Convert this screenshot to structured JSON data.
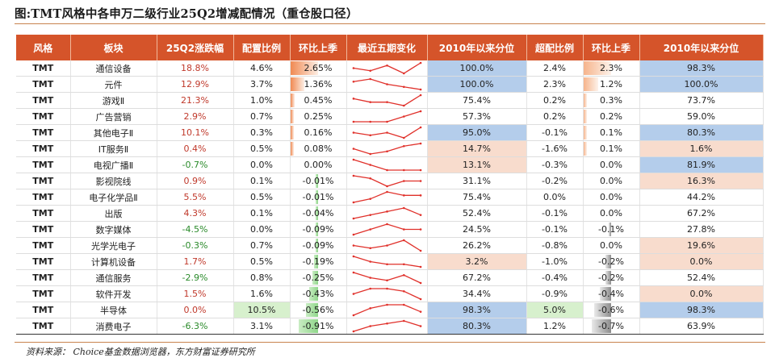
{
  "title": "图:TMT风格中各申万二级行业25Q2增减配情况（重仓股口径）",
  "source": "资料来源： Choice基金数据浏览器，东方财富证券研究所",
  "colors": {
    "header_bg": "#d5542a",
    "spark_line": "#e0302a",
    "positive_text": "#c0392b",
    "negative_text": "#2a8a2a"
  },
  "chart_data": {
    "type": "table",
    "columns": [
      "风格",
      "板块",
      "25Q2涨跌幅",
      "配置比例",
      "环比上季",
      "最近五期变化",
      "2010年以来分位",
      "超配比例",
      "环比上季",
      "2010年以来分位"
    ],
    "rows": [
      {
        "style": "TMT",
        "sector": "通信设备",
        "change": "18.8%",
        "alloc": "4.6%",
        "qoq": "2.65%",
        "spark": [
          3,
          2,
          4,
          1,
          5
        ],
        "pct": "100.0%",
        "over": "2.4%",
        "qoq2": "2.3%",
        "pct2": "98.3%"
      },
      {
        "style": "TMT",
        "sector": "元件",
        "change": "12.9%",
        "alloc": "3.7%",
        "qoq": "1.36%",
        "spark": [
          4,
          5,
          3,
          2,
          1
        ],
        "pct": "100.0%",
        "over": "2.3%",
        "qoq2": "1.2%",
        "pct2": "100.0%"
      },
      {
        "style": "TMT",
        "sector": "游戏Ⅱ",
        "change": "21.3%",
        "alloc": "1.0%",
        "qoq": "0.45%",
        "spark": [
          4,
          3,
          3,
          2,
          5
        ],
        "pct": "75.4%",
        "over": "0.2%",
        "qoq2": "0.3%",
        "pct2": "73.7%"
      },
      {
        "style": "TMT",
        "sector": "广告营销",
        "change": "2.9%",
        "alloc": "0.7%",
        "qoq": "0.25%",
        "spark": [
          3,
          3,
          3,
          4,
          5
        ],
        "pct": "57.3%",
        "over": "0.2%",
        "qoq2": "0.2%",
        "pct2": "59.0%"
      },
      {
        "style": "TMT",
        "sector": "其他电子Ⅱ",
        "change": "10.1%",
        "alloc": "0.3%",
        "qoq": "0.16%",
        "spark": [
          3,
          2,
          3,
          1,
          5
        ],
        "pct": "95.0%",
        "over": "-0.1%",
        "qoq2": "0.1%",
        "pct2": "80.3%"
      },
      {
        "style": "TMT",
        "sector": "IT服务Ⅱ",
        "change": "0.4%",
        "alloc": "0.5%",
        "qoq": "0.08%",
        "spark": [
          3,
          1,
          2,
          4,
          5
        ],
        "pct": "14.7%",
        "over": "-1.6%",
        "qoq2": "0.1%",
        "pct2": "1.6%"
      },
      {
        "style": "TMT",
        "sector": "电视广播Ⅱ",
        "change": "-0.7%",
        "alloc": "0.0%",
        "qoq": "0.00%",
        "spark": [
          5,
          3,
          1,
          1,
          1
        ],
        "pct": "13.1%",
        "over": "-0.3%",
        "qoq2": "0.0%",
        "pct2": "81.9%"
      },
      {
        "style": "TMT",
        "sector": "影视院线",
        "change": "0.9%",
        "alloc": "0.1%",
        "qoq": "-0.01%",
        "spark": [
          5,
          4,
          1,
          3,
          3
        ],
        "pct": "31.1%",
        "over": "-0.2%",
        "qoq2": "0.0%",
        "pct2": "16.3%"
      },
      {
        "style": "TMT",
        "sector": "电子化学品Ⅱ",
        "change": "5.5%",
        "alloc": "0.5%",
        "qoq": "-0.01%",
        "spark": [
          2,
          3,
          5,
          4,
          4
        ],
        "pct": "75.4%",
        "over": "0.0%",
        "qoq2": "0.0%",
        "pct2": "44.2%"
      },
      {
        "style": "TMT",
        "sector": "出版",
        "change": "4.3%",
        "alloc": "0.1%",
        "qoq": "-0.04%",
        "spark": [
          2,
          3,
          4,
          5,
          3
        ],
        "pct": "52.4%",
        "over": "-0.1%",
        "qoq2": "0.0%",
        "pct2": "67.2%"
      },
      {
        "style": "TMT",
        "sector": "数字媒体",
        "change": "-4.5%",
        "alloc": "0.0%",
        "qoq": "-0.09%",
        "spark": [
          1,
          3,
          5,
          3,
          3
        ],
        "pct": "24.5%",
        "over": "-0.1%",
        "qoq2": "-0.1%",
        "pct2": "27.8%"
      },
      {
        "style": "TMT",
        "sector": "光学光电子",
        "change": "-0.3%",
        "alloc": "0.7%",
        "qoq": "-0.09%",
        "spark": [
          3,
          2,
          3,
          5,
          1
        ],
        "pct": "26.2%",
        "over": "-0.8%",
        "qoq2": "0.0%",
        "pct2": "19.6%"
      },
      {
        "style": "TMT",
        "sector": "计算机设备",
        "change": "1.7%",
        "alloc": "0.5%",
        "qoq": "-0.19%",
        "spark": [
          5,
          3,
          2,
          2,
          1
        ],
        "pct": "3.2%",
        "over": "-1.0%",
        "qoq2": "-0.2%",
        "pct2": "0.0%"
      },
      {
        "style": "TMT",
        "sector": "通信服务",
        "change": "-2.9%",
        "alloc": "0.8%",
        "qoq": "-0.25%",
        "spark": [
          5,
          3,
          2,
          4,
          1
        ],
        "pct": "67.2%",
        "over": "-0.4%",
        "qoq2": "-0.2%",
        "pct2": "52.4%"
      },
      {
        "style": "TMT",
        "sector": "软件开发",
        "change": "1.5%",
        "alloc": "1.6%",
        "qoq": "-0.43%",
        "spark": [
          3,
          5,
          5,
          4,
          1
        ],
        "pct": "34.4%",
        "over": "-0.9%",
        "qoq2": "-0.4%",
        "pct2": "0.0%"
      },
      {
        "style": "TMT",
        "sector": "半导体",
        "change": "0.0%",
        "alloc": "10.5%",
        "qoq": "-0.56%",
        "spark": [
          2,
          4,
          5,
          5,
          3
        ],
        "pct": "98.3%",
        "over": "5.0%",
        "qoq2": "-0.6%",
        "pct2": "98.3%"
      },
      {
        "style": "TMT",
        "sector": "消费电子",
        "change": "-6.3%",
        "alloc": "3.1%",
        "qoq": "-0.91%",
        "spark": [
          1,
          3,
          4,
          5,
          3
        ],
        "pct": "80.3%",
        "over": "1.2%",
        "qoq2": "-0.7%",
        "pct2": "63.9%"
      }
    ]
  }
}
